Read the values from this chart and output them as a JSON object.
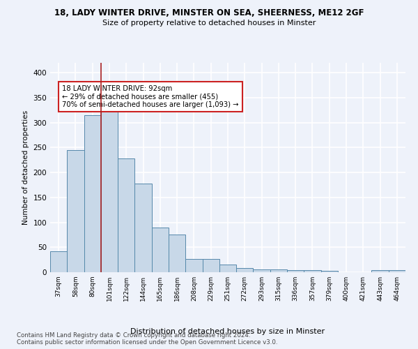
{
  "title1": "18, LADY WINTER DRIVE, MINSTER ON SEA, SHEERNESS, ME12 2GF",
  "title2": "Size of property relative to detached houses in Minster",
  "xlabel": "Distribution of detached houses by size in Minster",
  "ylabel": "Number of detached properties",
  "footnote": "Contains HM Land Registry data © Crown copyright and database right 2024.\nContains public sector information licensed under the Open Government Licence v3.0.",
  "categories": [
    "37sqm",
    "58sqm",
    "80sqm",
    "101sqm",
    "122sqm",
    "144sqm",
    "165sqm",
    "186sqm",
    "208sqm",
    "229sqm",
    "251sqm",
    "272sqm",
    "293sqm",
    "315sqm",
    "336sqm",
    "357sqm",
    "379sqm",
    "400sqm",
    "421sqm",
    "443sqm",
    "464sqm"
  ],
  "values": [
    42,
    245,
    315,
    330,
    228,
    178,
    90,
    75,
    26,
    26,
    16,
    9,
    5,
    5,
    4,
    4,
    3,
    0,
    0,
    4,
    4
  ],
  "bar_color": "#c8d8e8",
  "bar_edge_color": "#5588aa",
  "vline_x": 2.5,
  "vline_color": "#aa2222",
  "annotation_text": "18 LADY WINTER DRIVE: 92sqm\n← 29% of detached houses are smaller (455)\n70% of semi-detached houses are larger (1,093) →",
  "annotation_box_color": "white",
  "annotation_edge_color": "#cc2222",
  "ylim": [
    0,
    420
  ],
  "yticks": [
    0,
    50,
    100,
    150,
    200,
    250,
    300,
    350,
    400
  ],
  "bg_color": "#eef2fa",
  "grid_color": "white"
}
